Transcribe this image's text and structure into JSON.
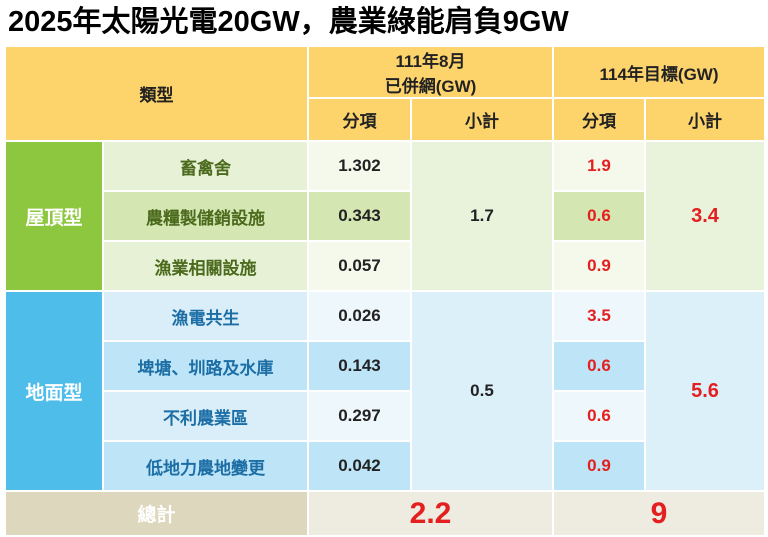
{
  "title": "2025年太陽光電20GW，農業綠能肩負9GW",
  "table": {
    "headers": {
      "type": "類型",
      "current": [
        "111年8月",
        "已併網(GW)"
      ],
      "target": "114年目標(GW)",
      "sub": [
        "分項",
        "小計",
        "分項",
        "小計"
      ]
    },
    "groups": [
      {
        "name": "屋頂型",
        "current_subtotal": "1.7",
        "target_subtotal": "3.4",
        "items": [
          {
            "name": "畜禽舍",
            "current": "1.302",
            "target": "1.9"
          },
          {
            "name": "農糧製儲銷設施",
            "current": "0.343",
            "target": "0.6"
          },
          {
            "name": "漁業相關設施",
            "current": "0.057",
            "target": "0.9"
          }
        ]
      },
      {
        "name": "地面型",
        "current_subtotal": "0.5",
        "target_subtotal": "5.6",
        "items": [
          {
            "name": "漁電共生",
            "current": "0.026",
            "target": "3.5"
          },
          {
            "name": "埤塘、圳路及水庫",
            "current": "0.143",
            "target": "0.6"
          },
          {
            "name": "不利農業區",
            "current": "0.297",
            "target": "0.6"
          },
          {
            "name": "低地力農地變更",
            "current": "0.042",
            "target": "0.9"
          }
        ]
      }
    ],
    "total": {
      "label": "總計",
      "current": "2.2",
      "target": "9"
    }
  }
}
